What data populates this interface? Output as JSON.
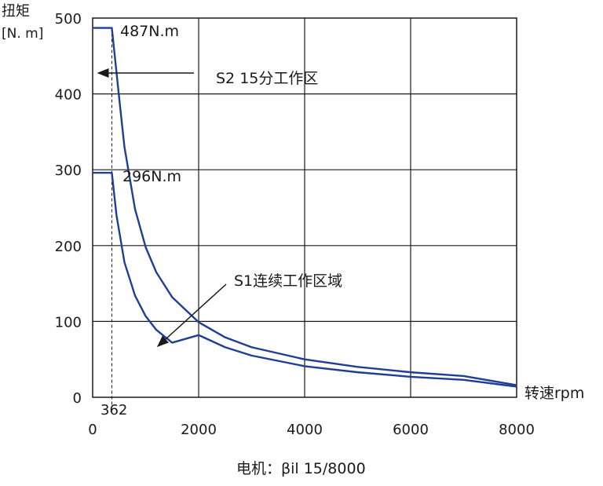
{
  "chart_data": {
    "type": "line",
    "ylabel_line1": "扭矩",
    "ylabel_line2": "[N. m]",
    "xlabel": "转速rpm",
    "caption": "电机：βil 15/8000",
    "xlim": [
      0,
      8000
    ],
    "ylim": [
      0,
      500
    ],
    "xticks": [
      0,
      2000,
      4000,
      6000,
      8000
    ],
    "yticks": [
      0,
      100,
      200,
      300,
      400,
      500
    ],
    "grid": true,
    "x_marker": {
      "value": 362,
      "label": "362"
    },
    "series": [
      {
        "name": "S2 15分工作区",
        "color": "#1f3f95",
        "peak_label": "487N.m",
        "x": [
          0,
          362,
          500,
          600,
          800,
          1000,
          1200,
          1500,
          2000,
          2500,
          3000,
          4000,
          5000,
          6000,
          7000,
          8000
        ],
        "y": [
          487,
          487,
          395,
          330,
          248,
          198,
          165,
          132,
          99,
          79,
          66,
          50,
          40,
          33,
          28,
          16
        ]
      },
      {
        "name": "S1连续工作区域",
        "color": "#1f3f95",
        "peak_label": "296N.m",
        "x": [
          0,
          362,
          450,
          600,
          800,
          1000,
          1200,
          1500,
          2000,
          2500,
          3000,
          4000,
          5000,
          6000,
          7000,
          8000
        ],
        "y": [
          296,
          296,
          240,
          178,
          134,
          107,
          89,
          72,
          82,
          66,
          55,
          41,
          33,
          27,
          23,
          14
        ]
      }
    ],
    "annotations": {
      "s2_text": "S2 15分工作区",
      "s1_text": "S1连续工作区域"
    }
  }
}
